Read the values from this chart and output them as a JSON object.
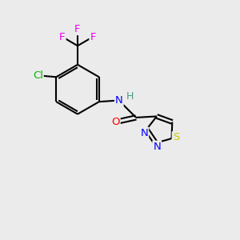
{
  "bg_color": "#ebebeb",
  "bond_color": "#000000",
  "bond_width": 1.5,
  "atom_colors": {
    "N": "#0000ff",
    "O": "#ff0000",
    "S": "#cccc00",
    "Cl": "#00bb00",
    "F": "#ee00ee",
    "C": "#000000",
    "H": "#4a9a8a"
  },
  "font_size": 9.5
}
